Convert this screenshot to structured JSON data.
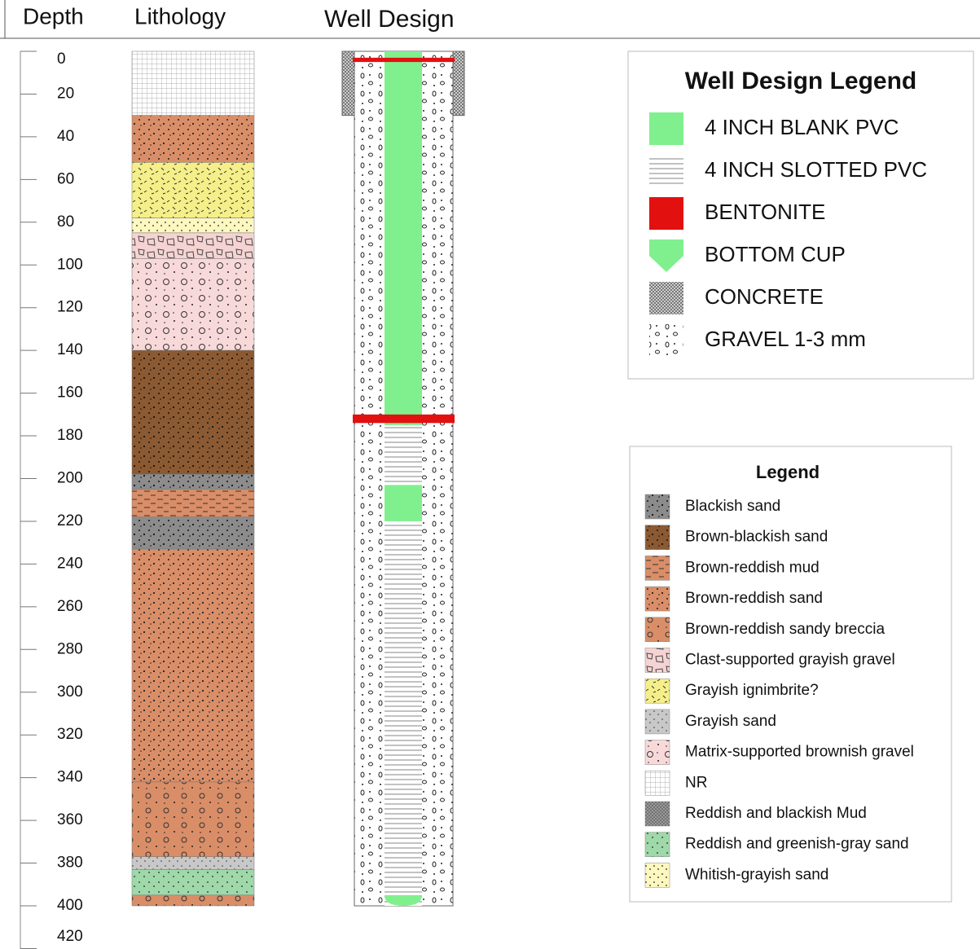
{
  "header": {
    "depth": "Depth",
    "lithology": "Lithology",
    "well_design": "Well Design"
  },
  "depth_axis": {
    "ylim": [
      0,
      420
    ],
    "yticks": [
      0,
      20,
      40,
      60,
      80,
      100,
      120,
      140,
      160,
      180,
      200,
      220,
      240,
      260,
      280,
      300,
      320,
      340,
      360,
      380,
      400,
      420
    ]
  },
  "lithology_layers": [
    {
      "type": "NR",
      "top": 0,
      "bottom": 30
    },
    {
      "type": "Brown-reddish sand",
      "top": 30,
      "bottom": 52
    },
    {
      "type": "Grayish ignimbrite?",
      "top": 52,
      "bottom": 78
    },
    {
      "type": "Whitish-grayish sand",
      "top": 78,
      "bottom": 85
    },
    {
      "type": "Clast-supported grayish gravel",
      "top": 85,
      "bottom": 97
    },
    {
      "type": "Matrix-supported brownish gravel",
      "top": 97,
      "bottom": 140
    },
    {
      "type": "Brown-blackish sand",
      "top": 140,
      "bottom": 198
    },
    {
      "type": "Blackish sand",
      "top": 198,
      "bottom": 205
    },
    {
      "type": "Brown-reddish mud",
      "top": 205,
      "bottom": 218
    },
    {
      "type": "Blackish sand",
      "top": 218,
      "bottom": 233
    },
    {
      "type": "Brown-reddish sand",
      "top": 233,
      "bottom": 342
    },
    {
      "type": "Brown-reddish sandy breccia",
      "top": 342,
      "bottom": 377
    },
    {
      "type": "Grayish sand",
      "top": 377,
      "bottom": 383
    },
    {
      "type": "Reddish and greenish-gray sand",
      "top": 383,
      "bottom": 395
    },
    {
      "type": "Brown-reddish sandy breccia",
      "top": 395,
      "bottom": 400
    }
  ],
  "well_intervals": [
    {
      "type": "GRAVEL 1-3 mm",
      "top": 0,
      "bottom": 400
    },
    {
      "type": "CONCRETE",
      "top": 0,
      "bottom": 30
    },
    {
      "type": "4 INCH BLANK PVC",
      "top": 0,
      "bottom": 175
    },
    {
      "type": "4 INCH SLOTTED PVC",
      "top": 175,
      "bottom": 203
    },
    {
      "type": "4 INCH BLANK PVC",
      "top": 203,
      "bottom": 220
    },
    {
      "type": "4 INCH SLOTTED PVC",
      "top": 220,
      "bottom": 400
    },
    {
      "type": "BENTONITE",
      "top": 3,
      "bottom": 5
    },
    {
      "type": "BENTONITE",
      "top": 170,
      "bottom": 174
    },
    {
      "type": "BOTTOM CUP",
      "top": 395,
      "bottom": 400
    }
  ],
  "well_legend": {
    "title": "Well Design Legend",
    "items": [
      "4 INCH BLANK PVC",
      "4 INCH SLOTTED PVC",
      "BENTONITE",
      "BOTTOM CUP",
      "CONCRETE",
      "GRAVEL 1-3 mm"
    ]
  },
  "lithology_legend": {
    "title": "Legend",
    "items": [
      "Blackish sand",
      "Brown-blackish sand",
      "Brown-reddish mud",
      "Brown-reddish sand",
      "Brown-reddish sandy breccia",
      "Clast-supported grayish gravel",
      "Grayish ignimbrite?",
      "Grayish sand",
      "Matrix-supported brownish gravel",
      "NR",
      "Reddish and blackish Mud",
      "Reddish and greenish-gray sand",
      "Whitish-grayish sand"
    ]
  }
}
